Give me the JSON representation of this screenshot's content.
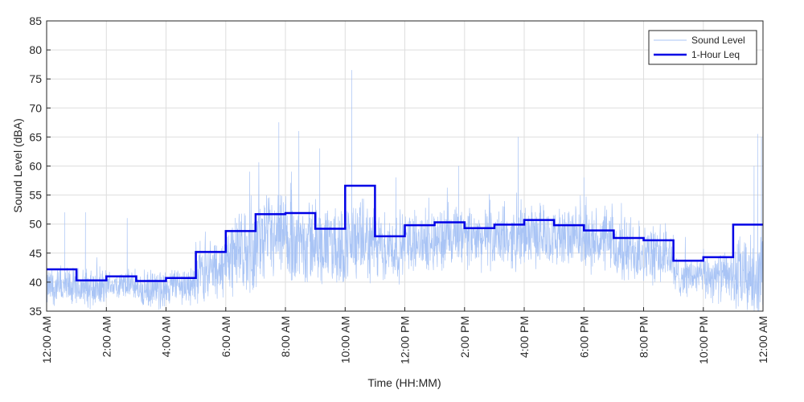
{
  "chart_data": {
    "type": "line",
    "xlabel": "Time (HH:MM)",
    "ylabel": "Sound Level (dBA)",
    "xlim": [
      0,
      24
    ],
    "ylim": [
      35,
      85
    ],
    "grid": true,
    "legend_position": "top-right",
    "x_ticks": [
      {
        "hour": 0,
        "label": "12:00 AM"
      },
      {
        "hour": 2,
        "label": "2:00 AM"
      },
      {
        "hour": 4,
        "label": "4:00 AM"
      },
      {
        "hour": 6,
        "label": "6:00 AM"
      },
      {
        "hour": 8,
        "label": "8:00 AM"
      },
      {
        "hour": 10,
        "label": "10:00 AM"
      },
      {
        "hour": 12,
        "label": "12:00 PM"
      },
      {
        "hour": 14,
        "label": "2:00 PM"
      },
      {
        "hour": 16,
        "label": "4:00 PM"
      },
      {
        "hour": 18,
        "label": "6:00 PM"
      },
      {
        "hour": 20,
        "label": "8:00 PM"
      },
      {
        "hour": 22,
        "label": "10:00 PM"
      },
      {
        "hour": 24,
        "label": "12:00 AM"
      }
    ],
    "y_ticks": [
      35,
      40,
      45,
      50,
      55,
      60,
      65,
      70,
      75,
      80,
      85
    ],
    "series": [
      {
        "name": "Sound Level",
        "color": "#a9c4f5",
        "style": "thin-noisy",
        "baseline_by_hour": [
          39,
          39,
          39.5,
          38.5,
          39.5,
          42,
          45,
          47,
          47,
          46,
          47,
          46,
          47,
          47.5,
          47.5,
          47.5,
          48,
          47.5,
          47,
          45.5,
          44.5,
          41,
          41,
          41
        ],
        "noise_amplitude_by_hour": [
          4,
          4,
          3,
          4,
          4,
          6,
          8,
          9,
          9,
          8,
          8,
          7,
          6,
          7,
          6,
          6,
          6,
          6,
          6,
          7,
          6,
          4,
          5,
          8
        ],
        "peaks": [
          {
            "x": 10.22,
            "y": 76.5
          },
          {
            "x": 7.78,
            "y": 67.5
          },
          {
            "x": 8.45,
            "y": 66
          },
          {
            "x": 23.82,
            "y": 65.5
          },
          {
            "x": 15.8,
            "y": 65
          },
          {
            "x": 9.15,
            "y": 63
          },
          {
            "x": 8.2,
            "y": 59
          },
          {
            "x": 23.95,
            "y": 65
          },
          {
            "x": 23.7,
            "y": 60
          },
          {
            "x": 13.8,
            "y": 60
          },
          {
            "x": 18.0,
            "y": 58
          },
          {
            "x": 11.7,
            "y": 58
          },
          {
            "x": 6.8,
            "y": 59
          },
          {
            "x": 0.6,
            "y": 52
          },
          {
            "x": 1.3,
            "y": 52
          },
          {
            "x": 2.7,
            "y": 51
          }
        ]
      },
      {
        "name": "1-Hour Leq",
        "color": "#0000e6",
        "style": "step",
        "hours": [
          0,
          1,
          2,
          3,
          4,
          5,
          6,
          7,
          8,
          9,
          10,
          11,
          12,
          13,
          14,
          15,
          16,
          17,
          18,
          19,
          20,
          21,
          22,
          23
        ],
        "values": [
          42.2,
          40.3,
          41.0,
          40.2,
          40.7,
          45.2,
          48.8,
          51.7,
          51.9,
          49.2,
          56.6,
          47.9,
          49.8,
          50.3,
          49.3,
          49.9,
          50.7,
          49.8,
          48.9,
          47.6,
          47.2,
          43.7,
          44.3,
          49.9
        ]
      }
    ]
  },
  "legend": {
    "items": [
      {
        "label": "Sound Level"
      },
      {
        "label": "1-Hour Leq"
      }
    ]
  }
}
